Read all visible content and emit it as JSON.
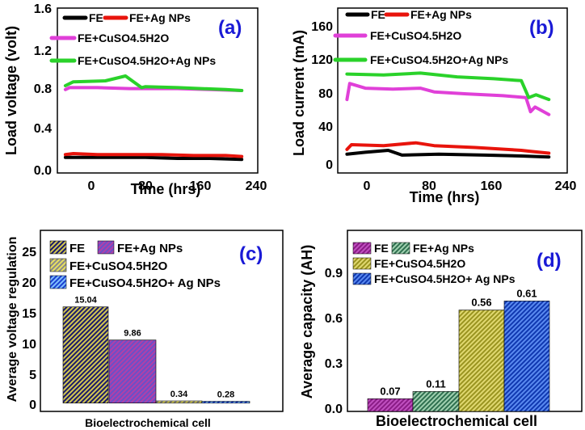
{
  "chart_data": [
    {
      "id": "a",
      "type": "line",
      "panel_label": "(a)",
      "xlabel": "Time (hrs)",
      "ylabel": "Load voltage (volt)",
      "xlim": [
        -10,
        240
      ],
      "ylim": [
        -0.1,
        1.6
      ],
      "xticks": [
        "0",
        "80",
        "160",
        "240"
      ],
      "yticks": [
        "0.0",
        "0.4",
        "0.8",
        "1.2",
        "1.6"
      ],
      "colors": [
        "#000000",
        "#e8140c",
        "#e040d8",
        "#2ad22a"
      ],
      "series": [
        {
          "name": "FE",
          "points": [
            [
              0,
              0.06
            ],
            [
              20,
              0.06
            ],
            [
              60,
              0.06
            ],
            [
              100,
              0.06
            ],
            [
              140,
              0.05
            ],
            [
              180,
              0.05
            ],
            [
              220,
              0.04
            ]
          ]
        },
        {
          "name": "FE+Ag NPs",
          "points": [
            [
              0,
              0.09
            ],
            [
              10,
              0.1
            ],
            [
              40,
              0.09
            ],
            [
              80,
              0.09
            ],
            [
              120,
              0.09
            ],
            [
              160,
              0.08
            ],
            [
              200,
              0.08
            ],
            [
              220,
              0.07
            ]
          ]
        },
        {
          "name": "FE+CuSO4.5H2O",
          "points": [
            [
              0,
              0.76
            ],
            [
              5,
              0.78
            ],
            [
              40,
              0.78
            ],
            [
              80,
              0.77
            ],
            [
              100,
              0.77
            ],
            [
              140,
              0.77
            ],
            [
              180,
              0.76
            ],
            [
              220,
              0.75
            ]
          ]
        },
        {
          "name": "FE+CuSO4.5H2O+Ag NPs",
          "points": [
            [
              0,
              0.8
            ],
            [
              10,
              0.84
            ],
            [
              50,
              0.85
            ],
            [
              75,
              0.9
            ],
            [
              95,
              0.78
            ],
            [
              100,
              0.79
            ],
            [
              140,
              0.78
            ],
            [
              200,
              0.76
            ],
            [
              220,
              0.75
            ]
          ]
        }
      ]
    },
    {
      "id": "b",
      "type": "line",
      "panel_label": "(b)",
      "xlabel": "Time (hrs)",
      "ylabel": "Load current (mA)",
      "xlim": [
        -10,
        240
      ],
      "ylim": [
        -10,
        165
      ],
      "xticks": [
        "0",
        "80",
        "160",
        "240"
      ],
      "yticks": [
        "0",
        "40",
        "80",
        "120",
        "160"
      ],
      "colors": [
        "#000000",
        "#e8140c",
        "#e040d8",
        "#2ad22a"
      ],
      "series": [
        {
          "name": "FE",
          "points": [
            [
              0,
              10
            ],
            [
              20,
              12
            ],
            [
              45,
              14
            ],
            [
              60,
              9
            ],
            [
              100,
              10
            ],
            [
              150,
              9
            ],
            [
              190,
              8
            ],
            [
              220,
              7
            ]
          ]
        },
        {
          "name": "FE+Ag NPs",
          "points": [
            [
              0,
              15
            ],
            [
              5,
              20
            ],
            [
              40,
              19
            ],
            [
              75,
              22
            ],
            [
              95,
              19
            ],
            [
              140,
              17
            ],
            [
              190,
              14
            ],
            [
              200,
              13
            ],
            [
              220,
              11
            ]
          ]
        },
        {
          "name": "FE+CuSO4.5H2O",
          "points": [
            [
              0,
              68
            ],
            [
              3,
              85
            ],
            [
              20,
              80
            ],
            [
              50,
              79
            ],
            [
              80,
              80
            ],
            [
              95,
              76
            ],
            [
              130,
              74
            ],
            [
              170,
              72
            ],
            [
              195,
              70
            ],
            [
              200,
              55
            ],
            [
              205,
              60
            ],
            [
              220,
              52
            ]
          ]
        },
        {
          "name": "FE+CuSO4.5H2O+Ag NPs",
          "points": [
            [
              0,
              95
            ],
            [
              40,
              94
            ],
            [
              80,
              96
            ],
            [
              120,
              92
            ],
            [
              160,
              90
            ],
            [
              190,
              88
            ],
            [
              198,
              70
            ],
            [
              206,
              73
            ],
            [
              220,
              68
            ]
          ]
        }
      ]
    },
    {
      "id": "c",
      "type": "bar",
      "panel_label": "(c)",
      "xlabel": "Bioelectrochemical cell",
      "ylabel": "Average voltage regulation",
      "ylim": [
        -1.3,
        27
      ],
      "yticks": [
        "0",
        "5",
        "10",
        "15",
        "20",
        "25"
      ],
      "categories": [
        "FE",
        "FE+Ag NPs",
        "FE+CuSO4.5H2O",
        "FE+CuSO4.5H2O+ Ag NPs"
      ],
      "values": [
        15.04,
        9.86,
        0.34,
        0.28
      ],
      "value_labels": [
        "15.04",
        "9.86",
        "0.34",
        "0.28"
      ],
      "colors": [
        "#3a3aa8",
        "#c04fb0",
        "#d8d040",
        "#1c5ad8"
      ]
    },
    {
      "id": "d",
      "type": "bar",
      "panel_label": "(d)",
      "xlabel": "Bioelectrochemical cell",
      "ylabel": "Average capacity (AH)",
      "ylim": [
        0,
        1.0
      ],
      "yticks": [
        "0.0",
        "0.3",
        "0.6",
        "0.9"
      ],
      "categories": [
        "FE",
        "FE+Ag NPs",
        "FE+CuSO4.5H2O",
        "FE+CuSO4.5H2O+ Ag NPs"
      ],
      "values": [
        0.07,
        0.11,
        0.56,
        0.61
      ],
      "value_labels": [
        "0.07",
        "0.11",
        "0.56",
        "0.61"
      ],
      "colors": [
        "#8a1c86",
        "#3f8a66",
        "#b8b42a",
        "#1c5ad8"
      ]
    }
  ]
}
